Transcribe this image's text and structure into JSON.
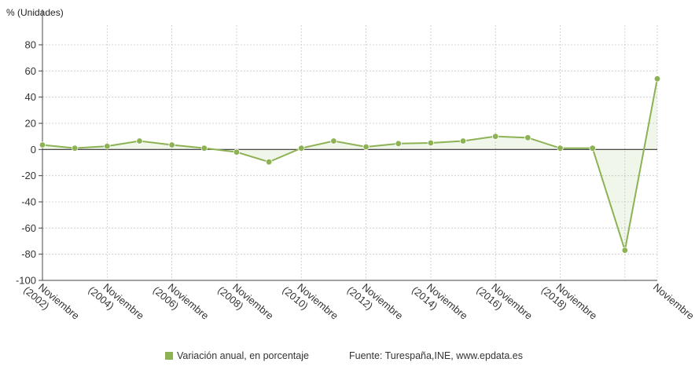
{
  "chart_data": {
    "type": "line",
    "ylabel": "% (Unidades)",
    "ylim": [
      -100,
      95
    ],
    "yticks": [
      80,
      60,
      40,
      20,
      0,
      -20,
      -40,
      -60,
      -80,
      -100
    ],
    "x_tick_labels": [
      [
        "Noviembre",
        "(2002)"
      ],
      [
        "Noviembre",
        "(2004)"
      ],
      [
        "Noviembre",
        "(2006)"
      ],
      [
        "Noviembre",
        "(2008)"
      ],
      [
        "Noviembre",
        "(2010)"
      ],
      [
        "Noviembre",
        "(2012)"
      ],
      [
        "Noviembre",
        "(2014)"
      ],
      [
        "Noviembre",
        "(2016)"
      ],
      [
        "Noviembre",
        "(2018)"
      ],
      [
        "Noviembre",
        ""
      ]
    ],
    "x_years": [
      2002,
      2003,
      2004,
      2005,
      2006,
      2007,
      2008,
      2009,
      2010,
      2011,
      2012,
      2013,
      2014,
      2015,
      2016,
      2017,
      2018,
      2019,
      2020,
      2021
    ],
    "series": [
      {
        "name": "Variación anual, en porcentaje",
        "color": "#8db254",
        "values": [
          3.5,
          1,
          2.5,
          6.5,
          3.5,
          1,
          -2,
          -9.5,
          1,
          6.5,
          2,
          4.5,
          5,
          6.5,
          10,
          9,
          1,
          1,
          -77,
          54
        ]
      }
    ],
    "grid": true
  },
  "footer": {
    "legend_label": "Variación anual, en porcentaje",
    "source": "Fuente: Turespaña,INE, www.epdata.es"
  }
}
